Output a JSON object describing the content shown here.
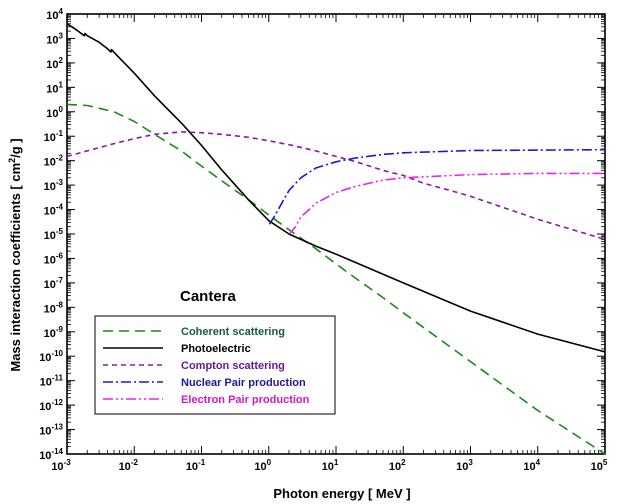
{
  "chart_data": {
    "type": "line",
    "xscale": "log",
    "yscale": "log",
    "xlim": [
      0.001,
      100000
    ],
    "ylim": [
      1e-14,
      10000
    ],
    "xlabel": "Photon energy   [  MeV  ]",
    "ylabel": "Mass interaction coefficients   [  cm²/g  ]",
    "annotation": "Cantera",
    "x_ticks": [
      {
        "value": 0.001,
        "base": "10",
        "exp": "-3"
      },
      {
        "value": 0.01,
        "base": "10",
        "exp": "-2"
      },
      {
        "value": 0.1,
        "base": "10",
        "exp": "-1"
      },
      {
        "value": 1,
        "base": "10",
        "exp": "0"
      },
      {
        "value": 10,
        "base": "10",
        "exp": "1"
      },
      {
        "value": 100,
        "base": "10",
        "exp": "2"
      },
      {
        "value": 1000,
        "base": "10",
        "exp": "3"
      },
      {
        "value": 10000,
        "base": "10",
        "exp": "4"
      },
      {
        "value": 100000,
        "base": "10",
        "exp": "5"
      }
    ],
    "y_ticks": [
      {
        "value": 10000,
        "base": "10",
        "exp": "4"
      },
      {
        "value": 1000,
        "base": "10",
        "exp": "3"
      },
      {
        "value": 100,
        "base": "10",
        "exp": "2"
      },
      {
        "value": 10,
        "base": "10",
        "exp": "1"
      },
      {
        "value": 1,
        "base": "10",
        "exp": "0"
      },
      {
        "value": 0.1,
        "base": "10",
        "exp": "-1"
      },
      {
        "value": 0.01,
        "base": "10",
        "exp": "-2"
      },
      {
        "value": 0.001,
        "base": "10",
        "exp": "-3"
      },
      {
        "value": 0.0001,
        "base": "10",
        "exp": "-4"
      },
      {
        "value": 1e-05,
        "base": "10",
        "exp": "-5"
      },
      {
        "value": 1e-06,
        "base": "10",
        "exp": "-6"
      },
      {
        "value": 1e-07,
        "base": "10",
        "exp": "-7"
      },
      {
        "value": 1e-08,
        "base": "10",
        "exp": "-8"
      },
      {
        "value": 1e-09,
        "base": "10",
        "exp": "-9"
      },
      {
        "value": 1e-10,
        "base": "10",
        "exp": "-10"
      },
      {
        "value": 1e-11,
        "base": "10",
        "exp": "-11"
      },
      {
        "value": 1e-12,
        "base": "10",
        "exp": "-12"
      },
      {
        "value": 1e-13,
        "base": "10",
        "exp": "-13"
      },
      {
        "value": 1e-14,
        "base": "10",
        "exp": "-14"
      }
    ],
    "series": [
      {
        "name": "Coherent scattering",
        "color": "#1a8a1a",
        "dash": "10,6",
        "x": [
          0.001,
          0.002,
          0.005,
          0.01,
          0.02,
          0.05,
          0.1,
          0.2,
          0.5,
          1,
          2,
          5,
          10,
          20,
          50,
          100,
          1000,
          10000,
          100000
        ],
        "y": [
          2,
          1.8,
          1,
          0.4,
          0.12,
          0.025,
          0.006,
          0.0015,
          0.00025,
          6e-05,
          1.5e-05,
          2.5e-06,
          6e-07,
          1.5e-07,
          2.5e-08,
          6e-09,
          6e-11,
          6e-13,
          1e-14
        ]
      },
      {
        "name": "Photoelectric",
        "color": "#000000",
        "dash": "",
        "x": [
          0.001,
          0.0014,
          0.0018,
          0.00185,
          0.002,
          0.003,
          0.004,
          0.0045,
          0.0046,
          0.005,
          0.01,
          0.02,
          0.05,
          0.1,
          0.2,
          0.3,
          0.5,
          1,
          2,
          5,
          10,
          100,
          1000,
          10000,
          100000
        ],
        "y": [
          4000,
          2200,
          1300,
          1600,
          1300,
          700,
          380,
          280,
          350,
          270,
          38,
          4.5,
          0.35,
          0.042,
          0.0042,
          0.0012,
          0.00025,
          3.5e-05,
          1e-05,
          3.2e-06,
          1.5e-06,
          1e-07,
          7e-09,
          8e-10,
          1.5e-10
        ]
      },
      {
        "name": "Compton scattering",
        "color": "#8b1a9b",
        "dash": "5,4",
        "x": [
          0.001,
          0.002,
          0.005,
          0.01,
          0.02,
          0.05,
          0.1,
          0.2,
          0.5,
          1,
          2,
          5,
          10,
          20,
          50,
          100,
          200,
          500,
          1000,
          10000,
          100000
        ],
        "y": [
          0.015,
          0.025,
          0.05,
          0.08,
          0.12,
          0.15,
          0.14,
          0.12,
          0.09,
          0.065,
          0.045,
          0.025,
          0.015,
          0.009,
          0.004,
          0.0025,
          0.0012,
          0.0006,
          0.00035,
          4e-05,
          6e-06
        ]
      },
      {
        "name": "Nuclear Pair production",
        "color": "#1a1acc",
        "dash": "10,3,2,3",
        "x": [
          1.022,
          1.2,
          1.5,
          2,
          3,
          5,
          10,
          20,
          50,
          100,
          1000,
          10000,
          100000
        ],
        "y": [
          2.5e-05,
          5e-05,
          0.00015,
          0.0006,
          0.002,
          0.005,
          0.009,
          0.013,
          0.018,
          0.021,
          0.026,
          0.027,
          0.028
        ]
      },
      {
        "name": "Electron Pair production",
        "color": "#ee22ee",
        "dash": "10,3,2,3,2,3",
        "x": [
          2.044,
          2.5,
          3,
          4,
          5,
          10,
          20,
          50,
          100,
          1000,
          10000,
          100000
        ],
        "y": [
          1e-05,
          2e-05,
          5e-05,
          0.0001,
          0.00018,
          0.0005,
          0.0009,
          0.0016,
          0.002,
          0.0027,
          0.003,
          0.003
        ]
      }
    ],
    "legend": {
      "placement": "bottom-left",
      "entries": [
        "Coherent scattering",
        "Photoelectric",
        "Compton scattering",
        "Nuclear Pair production",
        "Electron Pair production"
      ],
      "text_colors": [
        "#1a5c3a",
        "#000000",
        "#6a1a8a",
        "#1a1a99",
        "#cc1acc"
      ]
    },
    "grid": false
  }
}
